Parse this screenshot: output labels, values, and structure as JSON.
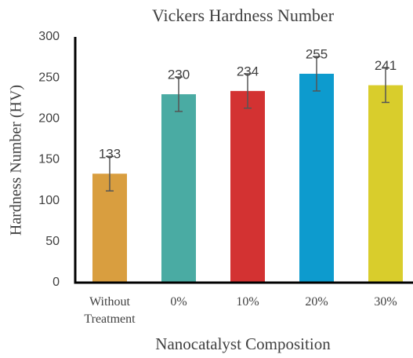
{
  "chart_data": {
    "type": "bar",
    "title": "Vickers Hardness Number",
    "x_label": "Nanocatalyst Composition",
    "y_label": "Hardness Number (HV)",
    "categories": [
      "Without Treatment",
      "0%",
      "10%",
      "20%",
      "30%"
    ],
    "values": [
      133,
      230,
      234,
      255,
      241
    ],
    "errors": [
      21,
      21,
      21,
      21,
      21
    ],
    "colors": [
      "#d99e3f",
      "#4aaba3",
      "#d33232",
      "#0d9bce",
      "#d9cd2c"
    ],
    "ylim": [
      0,
      300
    ],
    "yticks": [
      0,
      50,
      100,
      150,
      200,
      250,
      300
    ],
    "grid": false
  }
}
